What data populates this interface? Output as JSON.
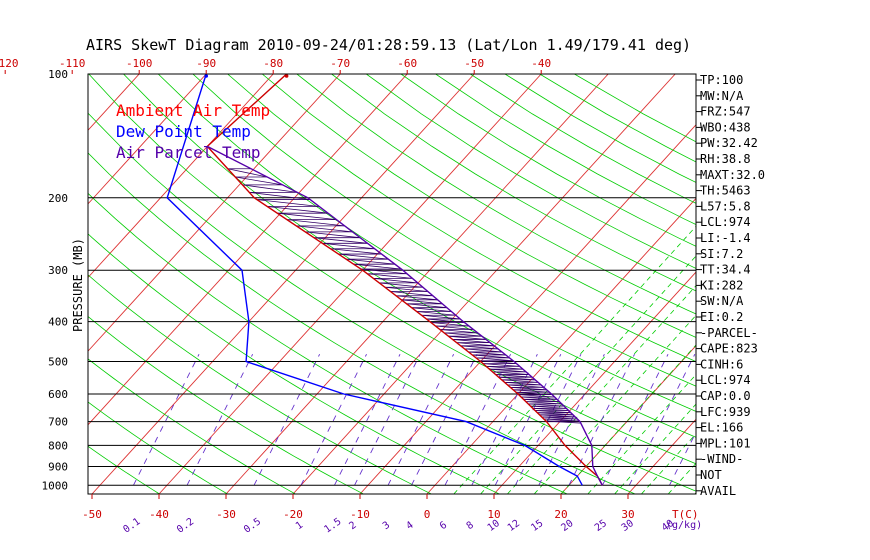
{
  "chart_data": {
    "type": "skewt",
    "title": "AIRS SkewT Diagram 2010-09-24/01:28:59.13 (Lat/Lon 1.49/179.41 deg)",
    "ylabel": "PRESSURE (MB)",
    "xlabel": "T(C)",
    "mixing_ratio_unit": "(g/kg)",
    "pressure_ticks": [
      "100",
      "200",
      "300",
      "400",
      "500",
      "600",
      "700",
      "800",
      "900",
      "1000"
    ],
    "pressure_levels": [
      100,
      200,
      300,
      400,
      500,
      600,
      700,
      800,
      900,
      1000
    ],
    "bottom_temp_ticks": [
      -50,
      -40,
      -30,
      -20,
      -10,
      0,
      10,
      20,
      30
    ],
    "top_temp_ticks": [
      -120,
      -110,
      -100,
      -90,
      -80,
      -70,
      -60,
      -50,
      -40
    ],
    "mixing_ratio_ticks": [
      {
        "label": "0.1",
        "t": -45
      },
      {
        "label": "0.2",
        "t": -37
      },
      {
        "label": "0.5",
        "t": -27
      },
      {
        "label": "1",
        "t": -20
      },
      {
        "label": "1.5",
        "t": -15
      },
      {
        "label": "2",
        "t": -12
      },
      {
        "label": "3",
        "t": -7
      },
      {
        "label": "4",
        "t": -3.5
      },
      {
        "label": "6",
        "t": 1.5
      },
      {
        "label": "8",
        "t": 5.5
      },
      {
        "label": "10",
        "t": 9
      },
      {
        "label": "12",
        "t": 12
      },
      {
        "label": "15",
        "t": 15.5
      },
      {
        "label": "20",
        "t": 20
      },
      {
        "label": "25",
        "t": 25
      },
      {
        "label": "30",
        "t": 29
      },
      {
        "label": "40",
        "t": 35
      }
    ],
    "legend": [
      {
        "label": "Ambient Air Temp",
        "color": "#ff0000"
      },
      {
        "label": "Dew Point Temp",
        "color": "#0000ff"
      },
      {
        "label": "Air Parcel Temp",
        "color": "#5500aa"
      }
    ],
    "series": [
      {
        "name": "Ambient Air Temp",
        "color": "#cc0000",
        "points": [
          [
            100,
            -78
          ],
          [
            150,
            -80
          ],
          [
            200,
            -66
          ],
          [
            300,
            -40
          ],
          [
            400,
            -23
          ],
          [
            500,
            -10
          ],
          [
            600,
            0
          ],
          [
            700,
            8
          ],
          [
            800,
            14
          ],
          [
            900,
            20
          ],
          [
            950,
            23
          ],
          [
            1000,
            25
          ]
        ]
      },
      {
        "name": "Dew Point Temp",
        "color": "#0000ff",
        "points": [
          [
            100,
            -90
          ],
          [
            200,
            -79
          ],
          [
            300,
            -58
          ],
          [
            400,
            -50
          ],
          [
            500,
            -45
          ],
          [
            600,
            -26
          ],
          [
            700,
            -4
          ],
          [
            800,
            8
          ],
          [
            900,
            16
          ],
          [
            950,
            20
          ],
          [
            1000,
            22
          ]
        ]
      },
      {
        "name": "Air Parcel Temp",
        "color": "#5500aa",
        "points": [
          [
            150,
            -80
          ],
          [
            200,
            -58
          ],
          [
            300,
            -34
          ],
          [
            400,
            -18
          ],
          [
            500,
            -5
          ],
          [
            600,
            5
          ],
          [
            700,
            13
          ],
          [
            800,
            18
          ],
          [
            900,
            21
          ],
          [
            950,
            23
          ],
          [
            1000,
            25
          ]
        ]
      }
    ]
  },
  "stats": [
    "TP:100",
    "MW:N/A",
    "FRZ:547",
    "WBO:438",
    "PW:32.42",
    "RH:38.8",
    "MAXT:32.0",
    "TH:5463",
    "L57:5.8",
    "LCL:974",
    "LI:-1.4",
    "SI:7.2",
    "TT:34.4",
    "KI:282",
    "SW:N/A",
    "EI:0.2",
    "-PARCEL-",
    "CAPE:823",
    "CINH:6",
    "LCL:974",
    "CAP:0.0",
    "LFC:939",
    "EL:166",
    "MPL:101",
    "-WIND-",
    "NOT",
    "AVAIL"
  ]
}
